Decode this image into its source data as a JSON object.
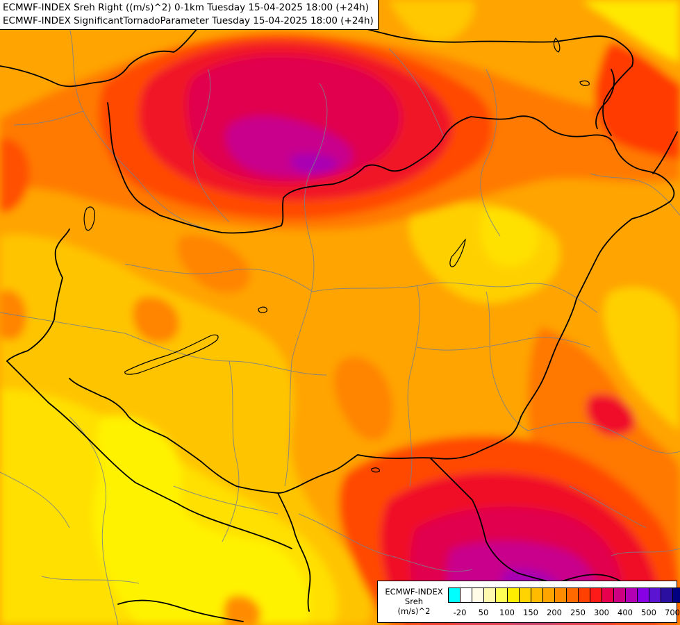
{
  "header": {
    "line1": "ECMWF-INDEX Sreh Right ((m/s)^2) 0-1km Tuesday 15-04-2025 18:00 (+24h)",
    "line2": "ECMWF-INDEX SignificantTornadoParameter Tuesday 15-04-2025 18:00 (+24h)"
  },
  "legend": {
    "source": "ECMWF-INDEX",
    "variable": "Sreh",
    "unit": "(m/s)^2",
    "colors": [
      "#00ffff",
      "#ffffff",
      "#fffbe6",
      "#fff9b0",
      "#ffff55",
      "#ffee00",
      "#ffd400",
      "#ffbb00",
      "#ffa500",
      "#ff8c00",
      "#ff6a00",
      "#ff4000",
      "#ff1a1a",
      "#e6004d",
      "#cc0080",
      "#b300b3",
      "#8800e6",
      "#5a14d2",
      "#2a0fa0",
      "#000080"
    ],
    "ticks": [
      "-20",
      "50",
      "100",
      "150",
      "200",
      "250",
      "300",
      "400",
      "500",
      "700"
    ]
  },
  "field_colors": {
    "background": "#ffa400",
    "yellow_light": "#ffea00",
    "yellow": "#ffcc00",
    "orange": "#ff8c00",
    "orange_red": "#ff5a00",
    "red": "#f0102a",
    "crimson": "#e0004d",
    "magenta": "#c8008c",
    "purple": "#a800b4",
    "border_line": "#000000",
    "admin_line": "#7a7f8a"
  }
}
